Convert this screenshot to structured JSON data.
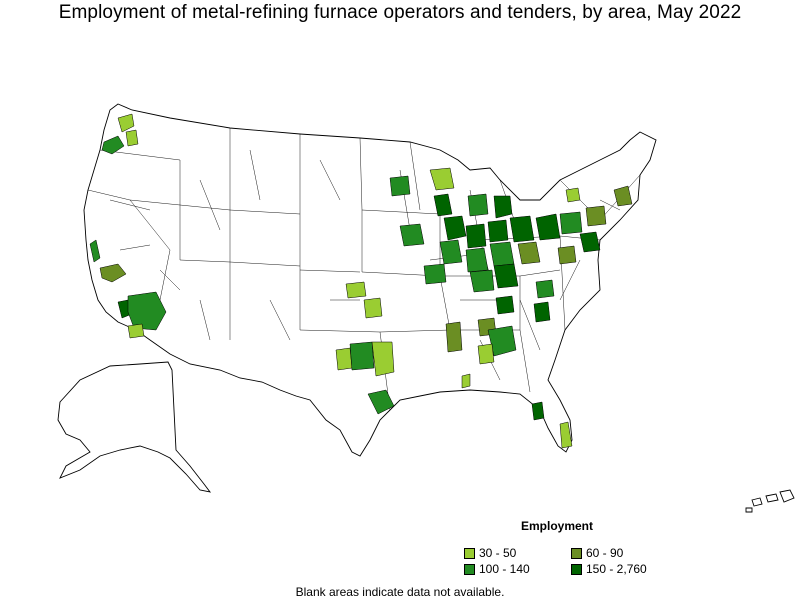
{
  "title": "Employment of metal-refining furnace operators and tenders, by area, May 2022",
  "legend": {
    "title": "Employment",
    "items": [
      {
        "label": "30 - 50",
        "color": "#9ACD32"
      },
      {
        "label": "60 - 90",
        "color": "#6B8E23"
      },
      {
        "label": "100 - 140",
        "color": "#228B22"
      },
      {
        "label": "150 - 2,760",
        "color": "#006400"
      }
    ]
  },
  "note": "Blank areas indicate data not available.",
  "colors": {
    "bin1": "#9ACD32",
    "bin2": "#6B8E23",
    "bin3": "#228B22",
    "bin4": "#006400"
  }
}
